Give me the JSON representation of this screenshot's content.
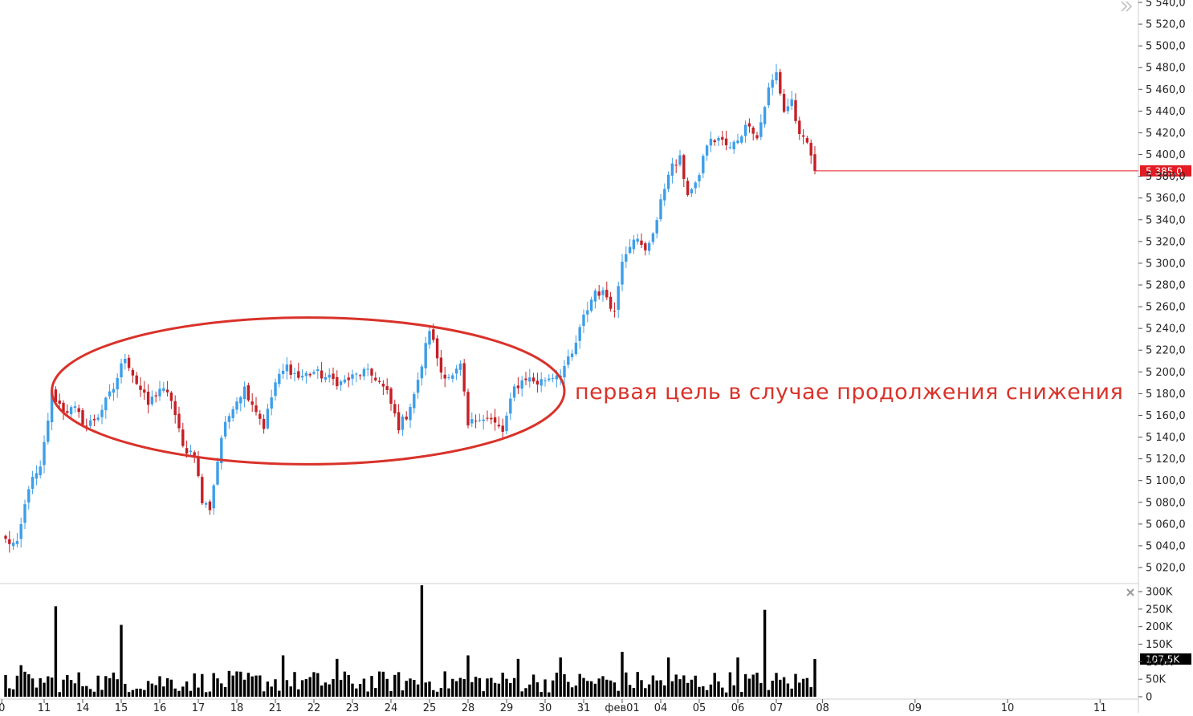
{
  "chart_data": {
    "type": "candlestick",
    "price_axis": {
      "ticks": [
        5020,
        5040,
        5060,
        5080,
        5100,
        5120,
        5140,
        5160,
        5180,
        5200,
        5220,
        5240,
        5260,
        5280,
        5300,
        5320,
        5340,
        5360,
        5380,
        5400,
        5420,
        5440,
        5460,
        5480,
        5500,
        5520,
        5540
      ],
      "labels": [
        "5 020,0",
        "5 040,0",
        "5 060,0",
        "5 080,0",
        "5 100,0",
        "5 120,0",
        "5 140,0",
        "5 160,0",
        "5 180,0",
        "5 200,0",
        "5 220,0",
        "5 240,0",
        "5 260,0",
        "5 280,0",
        "5 300,0",
        "5 320,0",
        "5 340,0",
        "5 360,0",
        "5 380,0",
        "5 400,0",
        "5 420,0",
        "5 440,0",
        "5 460,0",
        "5 480,0",
        "5 500,0",
        "5 520,0",
        "5 540,0"
      ],
      "range": [
        5000,
        5545
      ]
    },
    "volume_axis": {
      "ticks": [
        0,
        50000,
        100000,
        150000,
        200000,
        250000,
        300000
      ],
      "labels": [
        "0",
        "50K",
        "100K",
        "150K",
        "200K",
        "250K",
        "300K"
      ],
      "range": [
        0,
        318000
      ]
    },
    "x_axis": {
      "labels": [
        "0",
        "11",
        "14",
        "15",
        "16",
        "17",
        "18",
        "21",
        "22",
        "23",
        "24",
        "25",
        "28",
        "29",
        "30",
        "31",
        "фев01",
        "04",
        "05",
        "06",
        "07",
        "08",
        "09",
        "10",
        "11"
      ],
      "label_index": [
        -1,
        10,
        20,
        30,
        40,
        50,
        60,
        70,
        80,
        90,
        100,
        110,
        120,
        130,
        140,
        150,
        160,
        170,
        180,
        190,
        200,
        212,
        236,
        260,
        284
      ]
    },
    "last_price": {
      "value": 5385,
      "label": "5 385,0",
      "color": "#e31b23"
    },
    "last_volume": {
      "value": 107500,
      "label": "107,5K"
    },
    "colors": {
      "up": "#3d9ee9",
      "down": "#c42026",
      "volume": "#000000",
      "annotation": "#d9322a",
      "grid": "#e6e6e6"
    },
    "annotation_text": "первая цель в случае продолжения снижения",
    "anchors": [
      [
        0,
        5045
      ],
      [
        3,
        5040
      ],
      [
        6,
        5095
      ],
      [
        9,
        5110
      ],
      [
        12,
        5180
      ],
      [
        15,
        5165
      ],
      [
        18,
        5165
      ],
      [
        21,
        5150
      ],
      [
        24,
        5160
      ],
      [
        28,
        5185
      ],
      [
        31,
        5215
      ],
      [
        34,
        5190
      ],
      [
        37,
        5170
      ],
      [
        40,
        5185
      ],
      [
        43,
        5175
      ],
      [
        46,
        5130
      ],
      [
        49,
        5125
      ],
      [
        51,
        5080
      ],
      [
        53,
        5075
      ],
      [
        56,
        5140
      ],
      [
        59,
        5170
      ],
      [
        62,
        5185
      ],
      [
        65,
        5165
      ],
      [
        67,
        5150
      ],
      [
        70,
        5190
      ],
      [
        73,
        5205
      ],
      [
        76,
        5195
      ],
      [
        80,
        5200
      ],
      [
        83,
        5195
      ],
      [
        87,
        5190
      ],
      [
        90,
        5195
      ],
      [
        93,
        5200
      ],
      [
        96,
        5195
      ],
      [
        99,
        5180
      ],
      [
        102,
        5150
      ],
      [
        104,
        5160
      ],
      [
        107,
        5190
      ],
      [
        110,
        5240
      ],
      [
        113,
        5200
      ],
      [
        116,
        5195
      ],
      [
        118,
        5205
      ],
      [
        120,
        5150
      ],
      [
        123,
        5160
      ],
      [
        126,
        5155
      ],
      [
        129,
        5145
      ],
      [
        132,
        5185
      ],
      [
        135,
        5195
      ],
      [
        138,
        5190
      ],
      [
        141,
        5195
      ],
      [
        144,
        5200
      ],
      [
        147,
        5215
      ],
      [
        150,
        5250
      ],
      [
        153,
        5275
      ],
      [
        156,
        5270
      ],
      [
        158,
        5255
      ],
      [
        160,
        5305
      ],
      [
        163,
        5325
      ],
      [
        166,
        5310
      ],
      [
        169,
        5340
      ],
      [
        172,
        5385
      ],
      [
        175,
        5395
      ],
      [
        177,
        5365
      ],
      [
        179,
        5370
      ],
      [
        182,
        5410
      ],
      [
        185,
        5415
      ],
      [
        188,
        5405
      ],
      [
        191,
        5420
      ],
      [
        193,
        5430
      ],
      [
        195,
        5415
      ],
      [
        198,
        5460
      ],
      [
        200,
        5475
      ],
      [
        202,
        5440
      ],
      [
        204,
        5450
      ],
      [
        206,
        5415
      ],
      [
        208,
        5410
      ],
      [
        210,
        5390
      ]
    ],
    "volume_spikes": [
      [
        0,
        62000
      ],
      [
        4,
        90000
      ],
      [
        13,
        258000
      ],
      [
        30,
        205000
      ],
      [
        72,
        118000
      ],
      [
        86,
        108000
      ],
      [
        108,
        318000
      ],
      [
        120,
        118000
      ],
      [
        133,
        108000
      ],
      [
        144,
        112000
      ],
      [
        160,
        128000
      ],
      [
        172,
        112000
      ],
      [
        190,
        112000
      ],
      [
        197,
        248000
      ],
      [
        213,
        105000
      ]
    ]
  }
}
